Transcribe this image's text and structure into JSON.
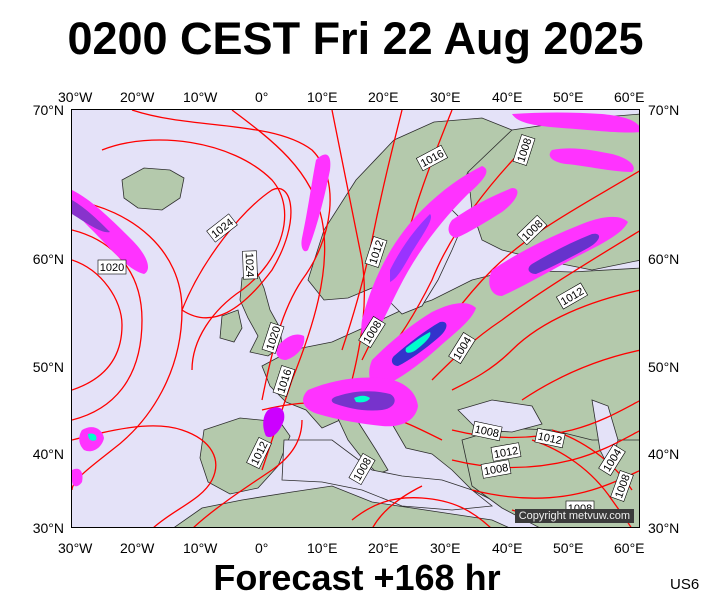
{
  "title": "0200 CEST Fri 22 Aug 2025",
  "footer": "Forecast +168 hr",
  "product_code": "US6",
  "copyright": "Copyright metvuw.com",
  "longitude_ticks": [
    "30°W",
    "20°W",
    "10°W",
    "0°",
    "10°E",
    "20°E",
    "30°E",
    "40°E",
    "50°E",
    "60°E"
  ],
  "latitude_ticks": [
    "70°N",
    "60°N",
    "50°N",
    "40°N",
    "30°N"
  ],
  "isobar_labels": [
    "1024",
    "1020",
    "1024",
    "1020",
    "1016",
    "1012",
    "1016",
    "1012",
    "1008",
    "1008",
    "1008",
    "1004",
    "1012",
    "1008",
    "1012",
    "1008",
    "1012",
    "1008",
    "1004",
    "1008",
    "1008"
  ],
  "colors": {
    "sea": "#e4e2f8",
    "land": "#b4c9ac",
    "isobar": "#ff0000",
    "precip_light": "#ff33ff",
    "precip_medium": "#cc00ff",
    "precip_heavy": "#3333cc",
    "precip_extreme": "#00ffcc"
  }
}
